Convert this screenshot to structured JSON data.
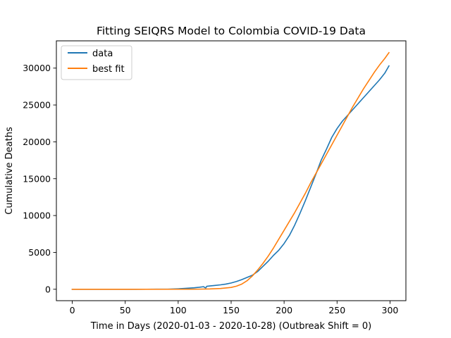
{
  "chart_data": {
    "type": "line",
    "title": "Fitting SEIQRS Model to Colombia COVID-19 Data",
    "xlabel": "Time in Days (2020-01-03 - 2020-10-28) (Outbreak Shift = 0)",
    "ylabel": "Cumulative Deaths",
    "xlim": [
      -15,
      315
    ],
    "ylim": [
      -1550,
      33700
    ],
    "xticks": [
      0,
      50,
      100,
      150,
      200,
      250,
      300
    ],
    "yticks": [
      0,
      5000,
      10000,
      15000,
      20000,
      25000,
      30000
    ],
    "grid": false,
    "legend_position": "upper left",
    "series": [
      {
        "name": "data",
        "color": "#1f77b4",
        "points": [
          [
            0,
            0
          ],
          [
            20,
            0
          ],
          [
            40,
            0
          ],
          [
            60,
            0
          ],
          [
            70,
            2
          ],
          [
            80,
            5
          ],
          [
            90,
            15
          ],
          [
            95,
            30
          ],
          [
            100,
            60
          ],
          [
            105,
            100
          ],
          [
            110,
            150
          ],
          [
            115,
            200
          ],
          [
            120,
            270
          ],
          [
            124,
            350
          ],
          [
            125,
            250
          ],
          [
            126,
            180
          ],
          [
            127,
            400
          ],
          [
            130,
            450
          ],
          [
            135,
            520
          ],
          [
            140,
            600
          ],
          [
            145,
            700
          ],
          [
            150,
            850
          ],
          [
            155,
            1050
          ],
          [
            160,
            1300
          ],
          [
            165,
            1600
          ],
          [
            170,
            1900
          ],
          [
            175,
            2400
          ],
          [
            180,
            3100
          ],
          [
            185,
            3800
          ],
          [
            190,
            4600
          ],
          [
            195,
            5300
          ],
          [
            200,
            6200
          ],
          [
            205,
            7300
          ],
          [
            210,
            8700
          ],
          [
            215,
            10300
          ],
          [
            220,
            12000
          ],
          [
            225,
            13800
          ],
          [
            230,
            15600
          ],
          [
            235,
            17500
          ],
          [
            240,
            19000
          ],
          [
            245,
            20600
          ],
          [
            250,
            21800
          ],
          [
            255,
            22800
          ],
          [
            260,
            23600
          ],
          [
            265,
            24400
          ],
          [
            270,
            25200
          ],
          [
            275,
            26000
          ],
          [
            280,
            26800
          ],
          [
            285,
            27600
          ],
          [
            290,
            28400
          ],
          [
            295,
            29300
          ],
          [
            299,
            30300
          ]
        ]
      },
      {
        "name": "best fit",
        "color": "#ff7f0e",
        "points": [
          [
            0,
            0
          ],
          [
            50,
            0
          ],
          [
            100,
            2
          ],
          [
            110,
            5
          ],
          [
            120,
            15
          ],
          [
            130,
            40
          ],
          [
            140,
            100
          ],
          [
            150,
            250
          ],
          [
            155,
            420
          ],
          [
            160,
            700
          ],
          [
            165,
            1150
          ],
          [
            170,
            1800
          ],
          [
            175,
            2600
          ],
          [
            180,
            3500
          ],
          [
            185,
            4500
          ],
          [
            190,
            5600
          ],
          [
            195,
            6800
          ],
          [
            200,
            8000
          ],
          [
            205,
            9200
          ],
          [
            210,
            10400
          ],
          [
            215,
            11700
          ],
          [
            220,
            13000
          ],
          [
            225,
            14400
          ],
          [
            230,
            15700
          ],
          [
            235,
            17000
          ],
          [
            240,
            18300
          ],
          [
            245,
            19600
          ],
          [
            250,
            20900
          ],
          [
            255,
            22200
          ],
          [
            260,
            23500
          ],
          [
            265,
            24800
          ],
          [
            270,
            26000
          ],
          [
            275,
            27200
          ],
          [
            280,
            28300
          ],
          [
            285,
            29400
          ],
          [
            290,
            30400
          ],
          [
            295,
            31300
          ],
          [
            299,
            32100
          ]
        ]
      }
    ]
  }
}
